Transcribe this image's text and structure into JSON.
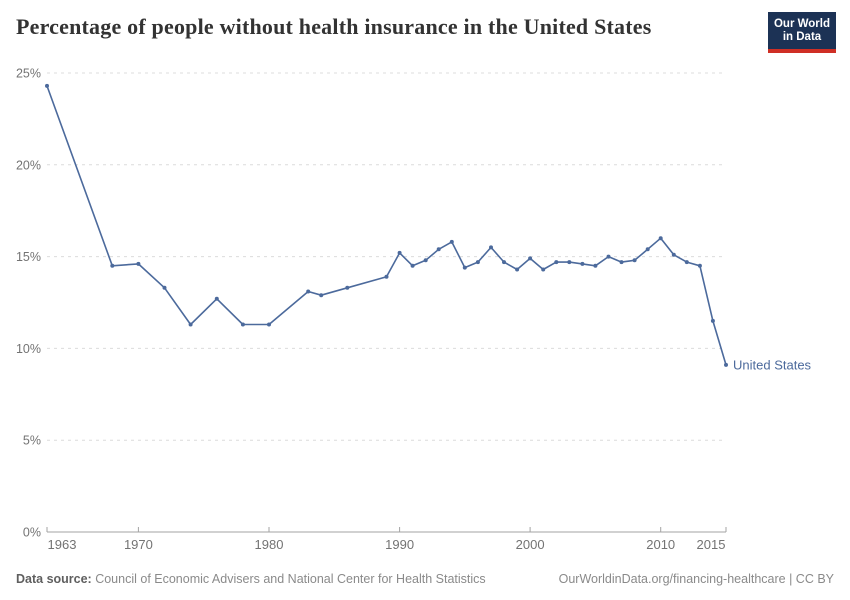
{
  "header": {
    "title": "Percentage of people without health insurance in the United States"
  },
  "logo": {
    "line1": "Our World",
    "line2": "in Data",
    "bg_color": "#1c3255",
    "accent_color": "#cf2f25"
  },
  "chart_data": {
    "type": "line",
    "title": "Percentage of people without health insurance in the United States",
    "x": [
      1963,
      1968,
      1970,
      1972,
      1974,
      1976,
      1978,
      1980,
      1983,
      1984,
      1986,
      1989,
      1990,
      1991,
      1992,
      1993,
      1994,
      1995,
      1996,
      1997,
      1998,
      1999,
      2000,
      2001,
      2002,
      2003,
      2004,
      2005,
      2006,
      2007,
      2008,
      2009,
      2010,
      2011,
      2012,
      2013,
      2014,
      2015
    ],
    "series": [
      {
        "name": "United States",
        "color": "#4C6A9C",
        "values": [
          24.3,
          14.5,
          14.6,
          13.3,
          11.3,
          12.7,
          11.3,
          11.3,
          13.1,
          12.9,
          13.3,
          13.9,
          15.2,
          14.5,
          14.8,
          15.4,
          15.8,
          14.4,
          14.7,
          15.5,
          14.7,
          14.3,
          14.9,
          14.3,
          14.7,
          14.7,
          14.6,
          14.5,
          15.0,
          14.7,
          14.8,
          15.4,
          16.0,
          15.1,
          14.7,
          14.5,
          11.5,
          9.1
        ]
      }
    ],
    "xlabel": "",
    "ylabel": "",
    "xlim": [
      1963,
      2015
    ],
    "ylim": [
      0,
      25
    ],
    "xticks": [
      1963,
      1970,
      1980,
      1990,
      2000,
      2010,
      2015
    ],
    "yticks": [
      0,
      5,
      10,
      15,
      20,
      25
    ],
    "ytick_suffix": "%",
    "grid": "horizontal-dashed",
    "legend_position": "end-of-line",
    "end_label": "United States",
    "colors": {
      "line": "#4C6A9C",
      "grid": "#dcdcdc",
      "axis": "#a3a3a3",
      "tick_text": "#737373"
    }
  },
  "footer": {
    "source_label": "Data source:",
    "source_text": " Council of Economic Advisers and National Center for Health Statistics",
    "credit": "OurWorldinData.org/financing-healthcare | CC BY"
  }
}
